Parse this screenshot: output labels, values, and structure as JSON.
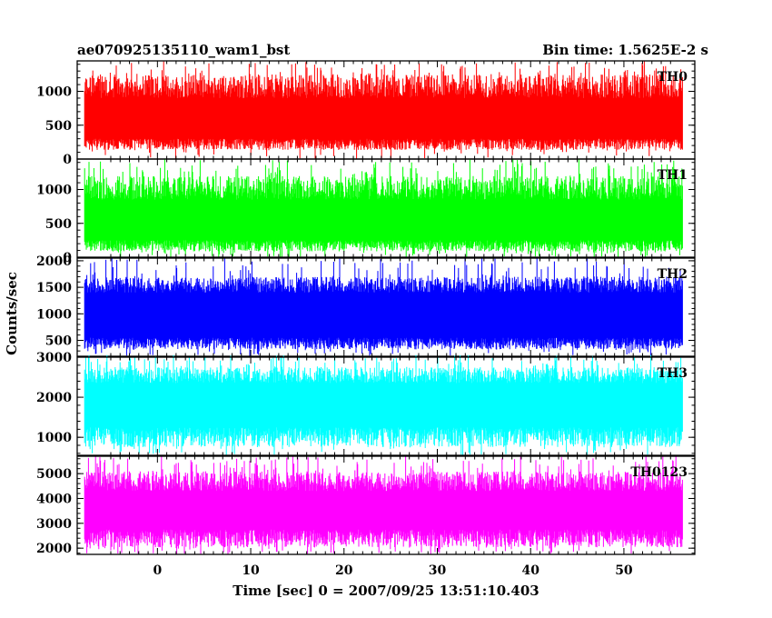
{
  "header": {
    "left": "ae070925135110_wam1_bst",
    "right": "Bin time: 1.5625E-2 s"
  },
  "chart_data": {
    "type": "line",
    "ylabel": "Counts/sec",
    "xlabel": "Time [sec] 0 = 2007/09/25 13:51:10.403",
    "xlim": [
      -8.6,
      57.6
    ],
    "x_data_range": [
      -7.8,
      56.3
    ],
    "x_ticks": [
      0,
      10,
      20,
      30,
      40,
      50
    ],
    "panels": [
      {
        "label": "TH0",
        "color": "#ff0000",
        "ylim": [
          0,
          1450
        ],
        "yticks": [
          0,
          500,
          1000
        ],
        "low": 150,
        "high": 1250,
        "base_low": 300,
        "base_high": 900,
        "spike_max": 1450
      },
      {
        "label": "TH1",
        "color": "#00ff00",
        "ylim": [
          0,
          1450
        ],
        "yticks": [
          0,
          500,
          1000
        ],
        "low": 100,
        "high": 1200,
        "base_low": 250,
        "base_high": 850,
        "spike_max": 1450
      },
      {
        "label": "TH2",
        "color": "#0000ff",
        "ylim": [
          200,
          2050
        ],
        "yticks": [
          500,
          1000,
          1500,
          2000
        ],
        "low": 350,
        "high": 1700,
        "base_low": 550,
        "base_high": 1400,
        "spike_max": 2050
      },
      {
        "label": "TH3",
        "color": "#00ffff",
        "ylim": [
          550,
          3000
        ],
        "yticks": [
          1000,
          2000,
          3000
        ],
        "low": 800,
        "high": 2750,
        "base_low": 1250,
        "base_high": 2350,
        "spike_max": 3100
      },
      {
        "label": "TH0123",
        "color": "#ff00ff",
        "ylim": [
          1750,
          5700
        ],
        "yticks": [
          2000,
          3000,
          4000,
          5000
        ],
        "low": 2100,
        "high": 5100,
        "base_low": 2750,
        "base_high": 4300,
        "spike_max": 5700
      }
    ]
  }
}
